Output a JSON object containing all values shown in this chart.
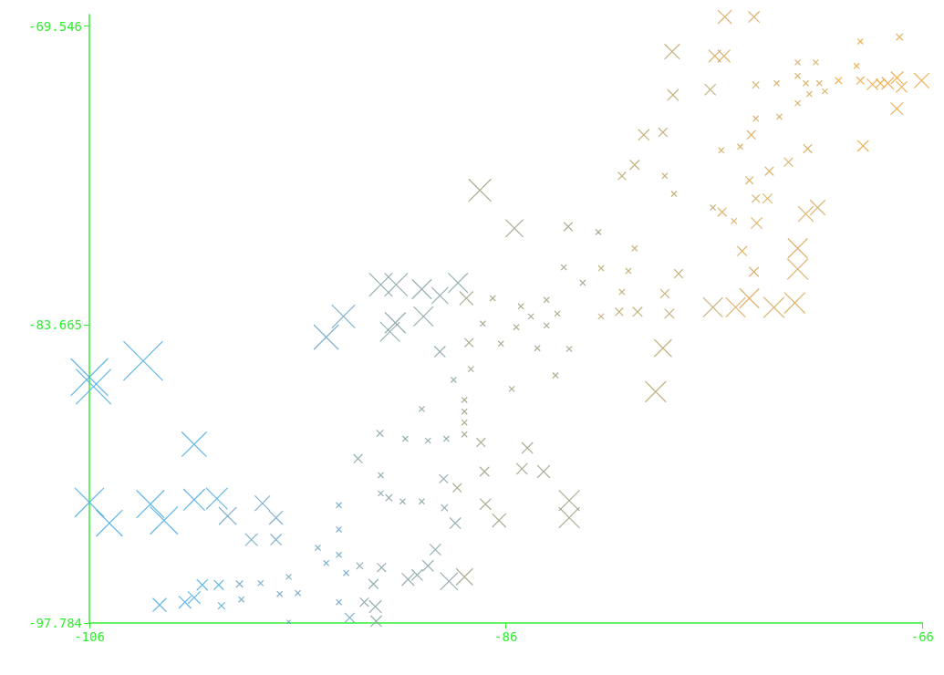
{
  "chart_data": {
    "type": "bubble",
    "marker": "cross",
    "grid": false,
    "xlim": [
      -106,
      -66
    ],
    "xticks": [
      -106,
      -86,
      -66
    ],
    "ylim": [
      -97.784,
      -69
    ],
    "yticks": [
      -97.784,
      -83.665,
      -69.546
    ],
    "series": [
      {
        "color": "#45a8e4",
        "x": [
          -106,
          -105.8,
          -103.42,
          -100.97,
          -106,
          -105.04,
          -103.07,
          -102.42,
          -100.97,
          -99.88,
          -102.63,
          -101.41,
          -100.97,
          -100.58,
          -99.79,
          -99.66
        ],
        "values": [
          -86.15,
          -86.6,
          -85.38,
          -89.33,
          -92.08,
          -93.06,
          -92.16,
          -92.93,
          -91.95,
          -91.9,
          -96.93,
          -96.8,
          -96.58,
          -95.98,
          -95.98,
          -96.97
        ],
        "sizes": [
          0.9,
          0.8,
          1,
          0.4,
          0.55,
          0.45,
          0.5,
          0.5,
          0.3,
          0.3,
          0.12,
          0.1,
          0.1,
          0.08,
          0.06,
          0.03
        ]
      },
      {
        "color": "#6aa2c4",
        "x": [
          -99.36,
          -97.69,
          -97.04,
          -97.04,
          -98.22,
          -98.79,
          -97.78,
          -98.7,
          -96.43,
          -96.86,
          -95.99,
          -96.43,
          -94.63,
          -93.8,
          -94.02,
          -94.02,
          -94.02,
          -95.03,
          -94.63,
          -93.67,
          -94.02,
          -93.5
        ],
        "values": [
          -92.72,
          -92.12,
          -92.8,
          -93.84,
          -93.84,
          -95.94,
          -95.9,
          -96.67,
          -95.6,
          -96.41,
          -96.37,
          -97.73,
          -84.26,
          -83.28,
          -92.21,
          -93.36,
          -94.56,
          -94.22,
          -94.95,
          -95.42,
          -96.8,
          -97.53
        ],
        "sizes": [
          0.2,
          0.15,
          0.12,
          0.08,
          0.1,
          0.03,
          0.02,
          0.02,
          0.02,
          0.02,
          0.02,
          0.01,
          0.4,
          0.35,
          0.02,
          0.02,
          0.02,
          0.02,
          0.02,
          0.02,
          0.02,
          0.06
        ]
      },
      {
        "color": "#84a0a4",
        "x": [
          -92.01,
          -91.27,
          -90.04,
          -91.31,
          -91.57,
          -89.96,
          -89.17,
          -88.3,
          -89.17,
          -88.51,
          -90.04,
          -92.05,
          -90.83,
          -89.74,
          -88.86,
          -93.1,
          -92.01,
          -92.01,
          -91.62,
          -90.96,
          -90.04,
          -88.99,
          -88.95,
          -88.43,
          -93.02,
          -91.97,
          -92.8,
          -92.27,
          -92.23,
          -92.36,
          -90.7,
          -90.26,
          -89.39,
          -89.74,
          -88.73
        ],
        "values": [
          -81.78,
          -81.78,
          -81.99,
          -83.58,
          -84,
          -83.28,
          -82.29,
          -81.69,
          -84.95,
          -86.28,
          -87.66,
          -88.81,
          -89.07,
          -89.16,
          -89.07,
          -90.01,
          -90.79,
          -91.65,
          -91.86,
          -92.03,
          -92.03,
          -90.96,
          -92.33,
          -93.06,
          -95.08,
          -95.16,
          -96.8,
          -97.01,
          -97.7,
          -95.94,
          -95.72,
          -95.51,
          -94.31,
          -95.08,
          -95.81
        ],
        "sizes": [
          0.35,
          0.35,
          0.25,
          0.28,
          0.25,
          0.25,
          0.18,
          0.25,
          0.08,
          0.02,
          0.02,
          0.03,
          0.02,
          0.02,
          0.02,
          0.05,
          0.02,
          0.02,
          0.03,
          0.02,
          0.02,
          0.05,
          0.03,
          0.08,
          0.03,
          0.05,
          0.05,
          0.1,
          0.08,
          0.06,
          0.1,
          0.08,
          0.08,
          0.08,
          0.2
        ]
      },
      {
        "color": "#9c9e80",
        "x": [
          -87.9,
          -87.25,
          -85.59,
          -87.77,
          -87.11,
          -86.63,
          -87.68,
          -87.99,
          -87.99,
          -87.99,
          -87.99,
          -87.2,
          -88.34,
          -86.98,
          -86.33,
          -87.03,
          -87.99,
          -84.97,
          -85.23,
          -84.19,
          -82.96,
          -82.96,
          -85.72,
          -86.24,
          -85.5,
          -85.28,
          -84.05,
          -84.8,
          -84.05,
          -83.53,
          -84.49,
          -83.62,
          -82.96,
          -83.01,
          -81.56,
          -83.22,
          -82.31
        ],
        "values": [
          -82.42,
          -77.31,
          -79.11,
          -84.52,
          -83.62,
          -82.42,
          -85.77,
          -87.23,
          -87.78,
          -88.3,
          -88.86,
          -89.24,
          -91.39,
          -92.16,
          -92.93,
          -90.62,
          -95.6,
          -89.5,
          -90.49,
          -90.62,
          -91.99,
          -92.8,
          -86.71,
          -84.57,
          -83.79,
          -82.8,
          -82.5,
          -83.28,
          -83.71,
          -83.15,
          -84.78,
          -86.07,
          -84.82,
          -79.03,
          -79.29,
          -80.96,
          -81.69
        ],
        "sizes": [
          0.12,
          0.33,
          0.2,
          0.05,
          0.02,
          0.02,
          0.02,
          0.02,
          0.02,
          0.02,
          0.02,
          0.05,
          0.05,
          0.08,
          0.12,
          0.06,
          0.18,
          0.08,
          0.08,
          0.1,
          0.28,
          0.28,
          0.02,
          0.02,
          0.02,
          0.02,
          0.02,
          0.02,
          0.02,
          0.02,
          0.02,
          0.02,
          0.02,
          0.05,
          0.02,
          0.02,
          0.02
        ]
      },
      {
        "color": "#bca46a",
        "x": [
          -81.43,
          -80.43,
          -79.82,
          -80.12,
          -81.43,
          -80.56,
          -79.68,
          -78.37,
          -78.15,
          -77.71,
          -78.46,
          -78.81,
          -76.06,
          -76.06,
          -77.93,
          -78.37,
          -80.43,
          -79.82,
          -79.38,
          -78.46,
          -77.98,
          -76.19,
          -78.02
        ],
        "values": [
          -81,
          -82.12,
          -80.06,
          -81.13,
          -83.28,
          -83.06,
          -83.06,
          -82.2,
          -83.15,
          -81.26,
          -84.78,
          -86.84,
          -82.85,
          -78.13,
          -77.48,
          -76.63,
          -76.63,
          -76.11,
          -74.69,
          -74.57,
          -72.8,
          -72.55,
          -70.75
        ],
        "sizes": [
          0.02,
          0.02,
          0.02,
          0.02,
          0.02,
          0.04,
          0.06,
          0.05,
          0.06,
          0.05,
          0.2,
          0.28,
          0.25,
          0.02,
          0.02,
          0.02,
          0.04,
          0.06,
          0.08,
          0.05,
          0.08,
          0.08,
          0.15
        ]
      },
      {
        "color": "#d6a652",
        "x": [
          -74.97,
          -74.31,
          -73.13,
          -72.13,
          -71.99,
          -71.99,
          -74.09,
          -73.96,
          -74.66,
          -75.62,
          -75.05,
          -74.31,
          -74,
          -73.44,
          -73.35,
          -71.6,
          -71.03,
          -75.66,
          -74.75,
          -74.22,
          -72.43,
          -71.51,
          -74,
          -72.87,
          -75.97,
          -75.53,
          -75.49,
          -74.09,
          -74,
          -73,
          -71.99,
          -71.99,
          -71.12,
          -71.6,
          -70.95,
          -70.68,
          -71.43,
          -71.99
        ],
        "values": [
          -82.85,
          -82.42,
          -82.85,
          -82.64,
          -80.06,
          -81.04,
          -81.17,
          -78.86,
          -80.19,
          -78.34,
          -78.77,
          -76.84,
          -77.7,
          -77.7,
          -76.41,
          -78.43,
          -78.13,
          -75.42,
          -75.25,
          -74.69,
          -75.98,
          -75.34,
          -73.92,
          -73.83,
          -70.96,
          -70.96,
          -69.11,
          -69.11,
          -72.33,
          -72.25,
          -71.26,
          -71.9,
          -71.26,
          -72.25,
          -72.25,
          -72.63,
          -72.76,
          -73.19
        ],
        "sizes": [
          0.25,
          0.25,
          0.28,
          0.28,
          0.25,
          0.28,
          0.06,
          0.08,
          0.06,
          0.05,
          0.02,
          0.04,
          0.04,
          0.06,
          0.05,
          0.15,
          0.15,
          0.02,
          0.02,
          0.05,
          0.05,
          0.05,
          0.02,
          0.02,
          0.1,
          0.1,
          0.12,
          0.08,
          0.03,
          0.02,
          0.02,
          0.02,
          0.02,
          0.02,
          0.02,
          0.02,
          0.02,
          0.02
        ]
      },
      {
        "color": "#eca23a",
        "x": [
          -68.85,
          -70.03,
          -68.98,
          -68.98,
          -69.16,
          -68.02,
          -67.1,
          -68.4,
          -67.66,
          -67.22,
          -67,
          -66.04,
          -67.23
        ],
        "values": [
          -75.21,
          -72.12,
          -72.12,
          -70.27,
          -71.43,
          -72.25,
          -70.06,
          -72.3,
          -72.25,
          -71.99,
          -72.42,
          -72.12,
          -73.45
        ],
        "sizes": [
          0.08,
          0.03,
          0.04,
          0.02,
          0.02,
          0.05,
          0.03,
          0.08,
          0.1,
          0.1,
          0.08,
          0.15,
          0.1
        ]
      }
    ]
  }
}
